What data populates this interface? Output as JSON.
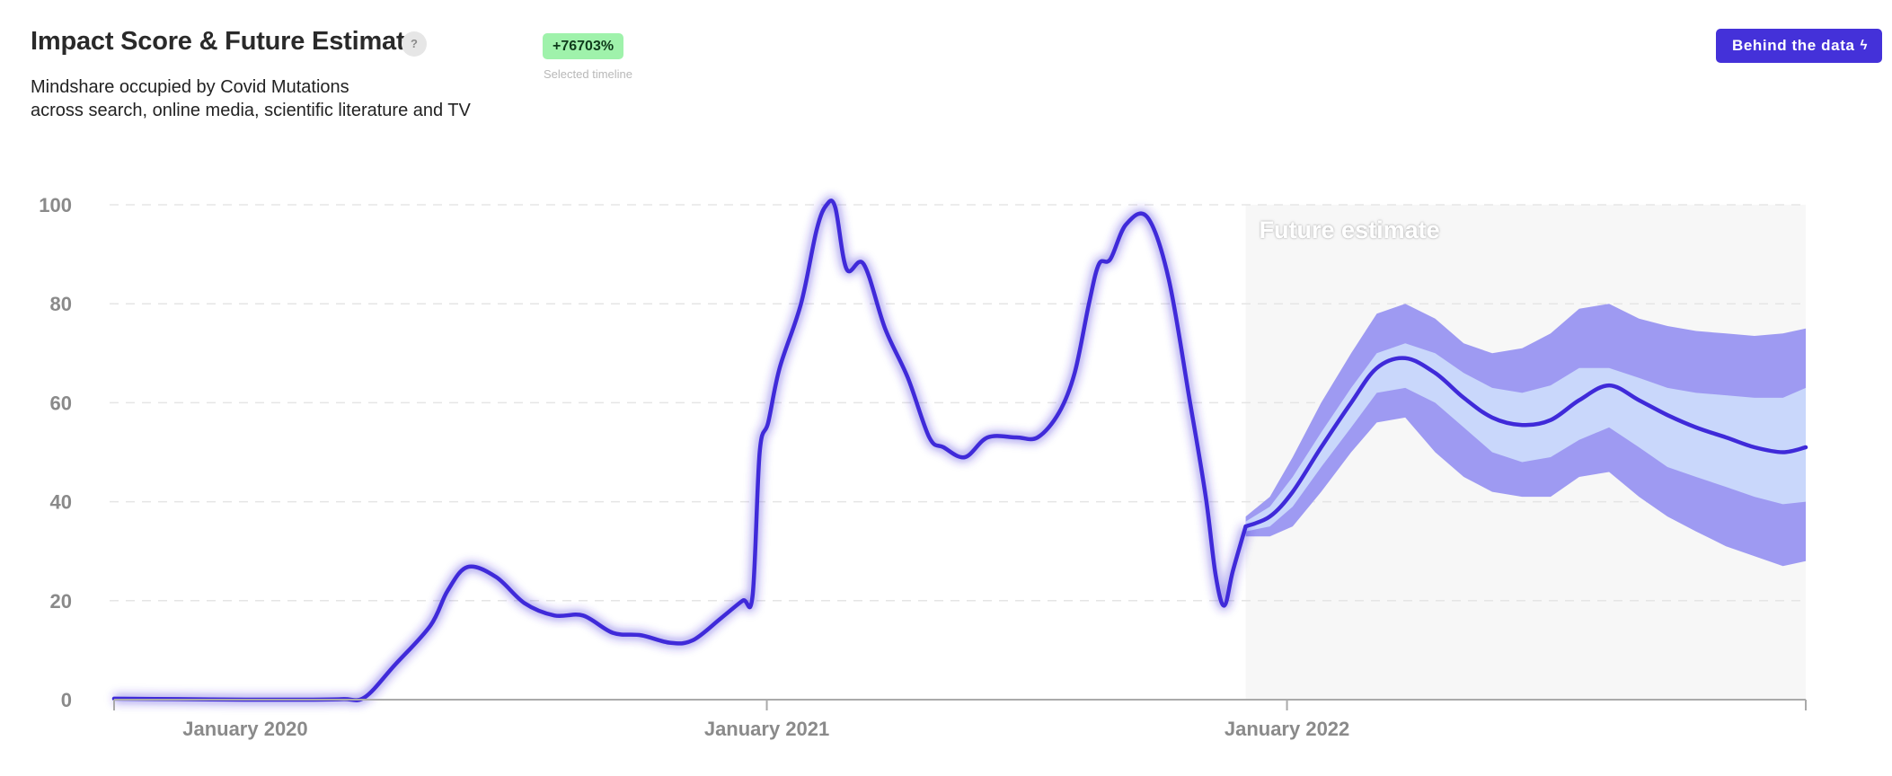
{
  "header": {
    "title": "Impact Score & Future Estimate",
    "help_icon_label": "?",
    "subtitle_line1": "Mindshare occupied by Covid Mutations",
    "subtitle_line2": "across search, online media, scientific literature and TV",
    "badge": "+76703%",
    "badge_caption": "Selected timeline",
    "cta_label": "Behind the data",
    "cta_icon": "lightning-bolt-icon"
  },
  "colors": {
    "line": "#3f2ad9",
    "band_outer": "#9e9af2",
    "band_inner": "#c9d7fb",
    "badge_bg": "#9ff2ab",
    "button_bg": "#4431d9",
    "future_bg": "#f7f7f7",
    "grid": "#e5e5e5",
    "axis_text": "#8a8a8a"
  },
  "chart_data": {
    "type": "line",
    "title": "Impact Score & Future Estimate",
    "x_tick_labels": [
      "January 2020",
      "January 2021",
      "January 2022"
    ],
    "y_tick_labels": [
      "0",
      "20",
      "40",
      "60",
      "80",
      "100"
    ],
    "ylim": [
      0,
      100
    ],
    "xlim": [
      "2019-10-01",
      "2022-12-31"
    ],
    "grid": "horizontal dashed",
    "future_region_label": "Future estimate",
    "future_start": "2021-12-03",
    "history": {
      "x": [
        "2019-10-01",
        "2019-11-15",
        "2020-01-01",
        "2020-02-15",
        "2020-03-10",
        "2020-03-25",
        "2020-04-15",
        "2020-05-10",
        "2020-05-22",
        "2020-06-05",
        "2020-06-25",
        "2020-07-15",
        "2020-08-05",
        "2020-08-25",
        "2020-09-15",
        "2020-10-05",
        "2020-10-25",
        "2020-11-10",
        "2020-11-30",
        "2020-12-15",
        "2020-12-22",
        "2020-12-27",
        "2021-01-02",
        "2021-01-10",
        "2021-01-25",
        "2021-02-05",
        "2021-02-12",
        "2021-02-18",
        "2021-02-26",
        "2021-03-10",
        "2021-03-25",
        "2021-04-10",
        "2021-04-25",
        "2021-05-05",
        "2021-05-20",
        "2021-06-05",
        "2021-06-25",
        "2021-07-10",
        "2021-07-25",
        "2021-08-05",
        "2021-08-15",
        "2021-08-22",
        "2021-08-30",
        "2021-09-10",
        "2021-09-25",
        "2021-10-10",
        "2021-10-25",
        "2021-11-05",
        "2021-11-12",
        "2021-11-18",
        "2021-11-24",
        "2021-12-03"
      ],
      "y": [
        0.2,
        0.1,
        0,
        0,
        0.1,
        0.5,
        7,
        15,
        22,
        26.8,
        24.8,
        19.5,
        17,
        17,
        13.5,
        13,
        11.5,
        12,
        16.5,
        20,
        21,
        50,
        56,
        67,
        80,
        95,
        100,
        99.5,
        87,
        88,
        75,
        65,
        53,
        51,
        49,
        53,
        53,
        53,
        58,
        66,
        80,
        88,
        89,
        96,
        97.5,
        85,
        60,
        41,
        25,
        19,
        26,
        35
      ]
    },
    "forecast": {
      "x": [
        "2021-12-03",
        "2021-12-20",
        "2022-01-05",
        "2022-01-25",
        "2022-02-15",
        "2022-03-05",
        "2022-03-25",
        "2022-04-15",
        "2022-05-05",
        "2022-05-25",
        "2022-06-15",
        "2022-07-05",
        "2022-07-25",
        "2022-08-15",
        "2022-09-05",
        "2022-09-25",
        "2022-10-15",
        "2022-11-05",
        "2022-11-25",
        "2022-12-15",
        "2022-12-31"
      ],
      "median": [
        35,
        37,
        42,
        51,
        60,
        67,
        69,
        66,
        61,
        57,
        55.5,
        56.5,
        60.5,
        63.5,
        60.5,
        57.5,
        55,
        53,
        51,
        50,
        51
      ],
      "inner_upper": [
        36,
        39,
        45,
        54,
        63,
        70,
        72,
        70,
        66,
        63,
        62,
        63.5,
        67,
        67,
        65,
        63,
        62,
        61.5,
        61,
        61,
        63
      ],
      "inner_lower": [
        34,
        35,
        39,
        47,
        55,
        62,
        63,
        60,
        55,
        50,
        48,
        49,
        52.5,
        55,
        51,
        47,
        45,
        43,
        41,
        39.5,
        40
      ],
      "outer_upper": [
        37,
        41,
        49,
        60,
        70,
        78,
        80,
        77,
        72,
        70,
        71,
        74,
        79,
        80,
        77,
        75.5,
        74.5,
        74,
        73.5,
        74,
        75
      ],
      "outer_lower": [
        33,
        33,
        35,
        42,
        50,
        56,
        57,
        50,
        45,
        42,
        41,
        41,
        45,
        46,
        41,
        37,
        34,
        31,
        29,
        27,
        28
      ]
    }
  }
}
